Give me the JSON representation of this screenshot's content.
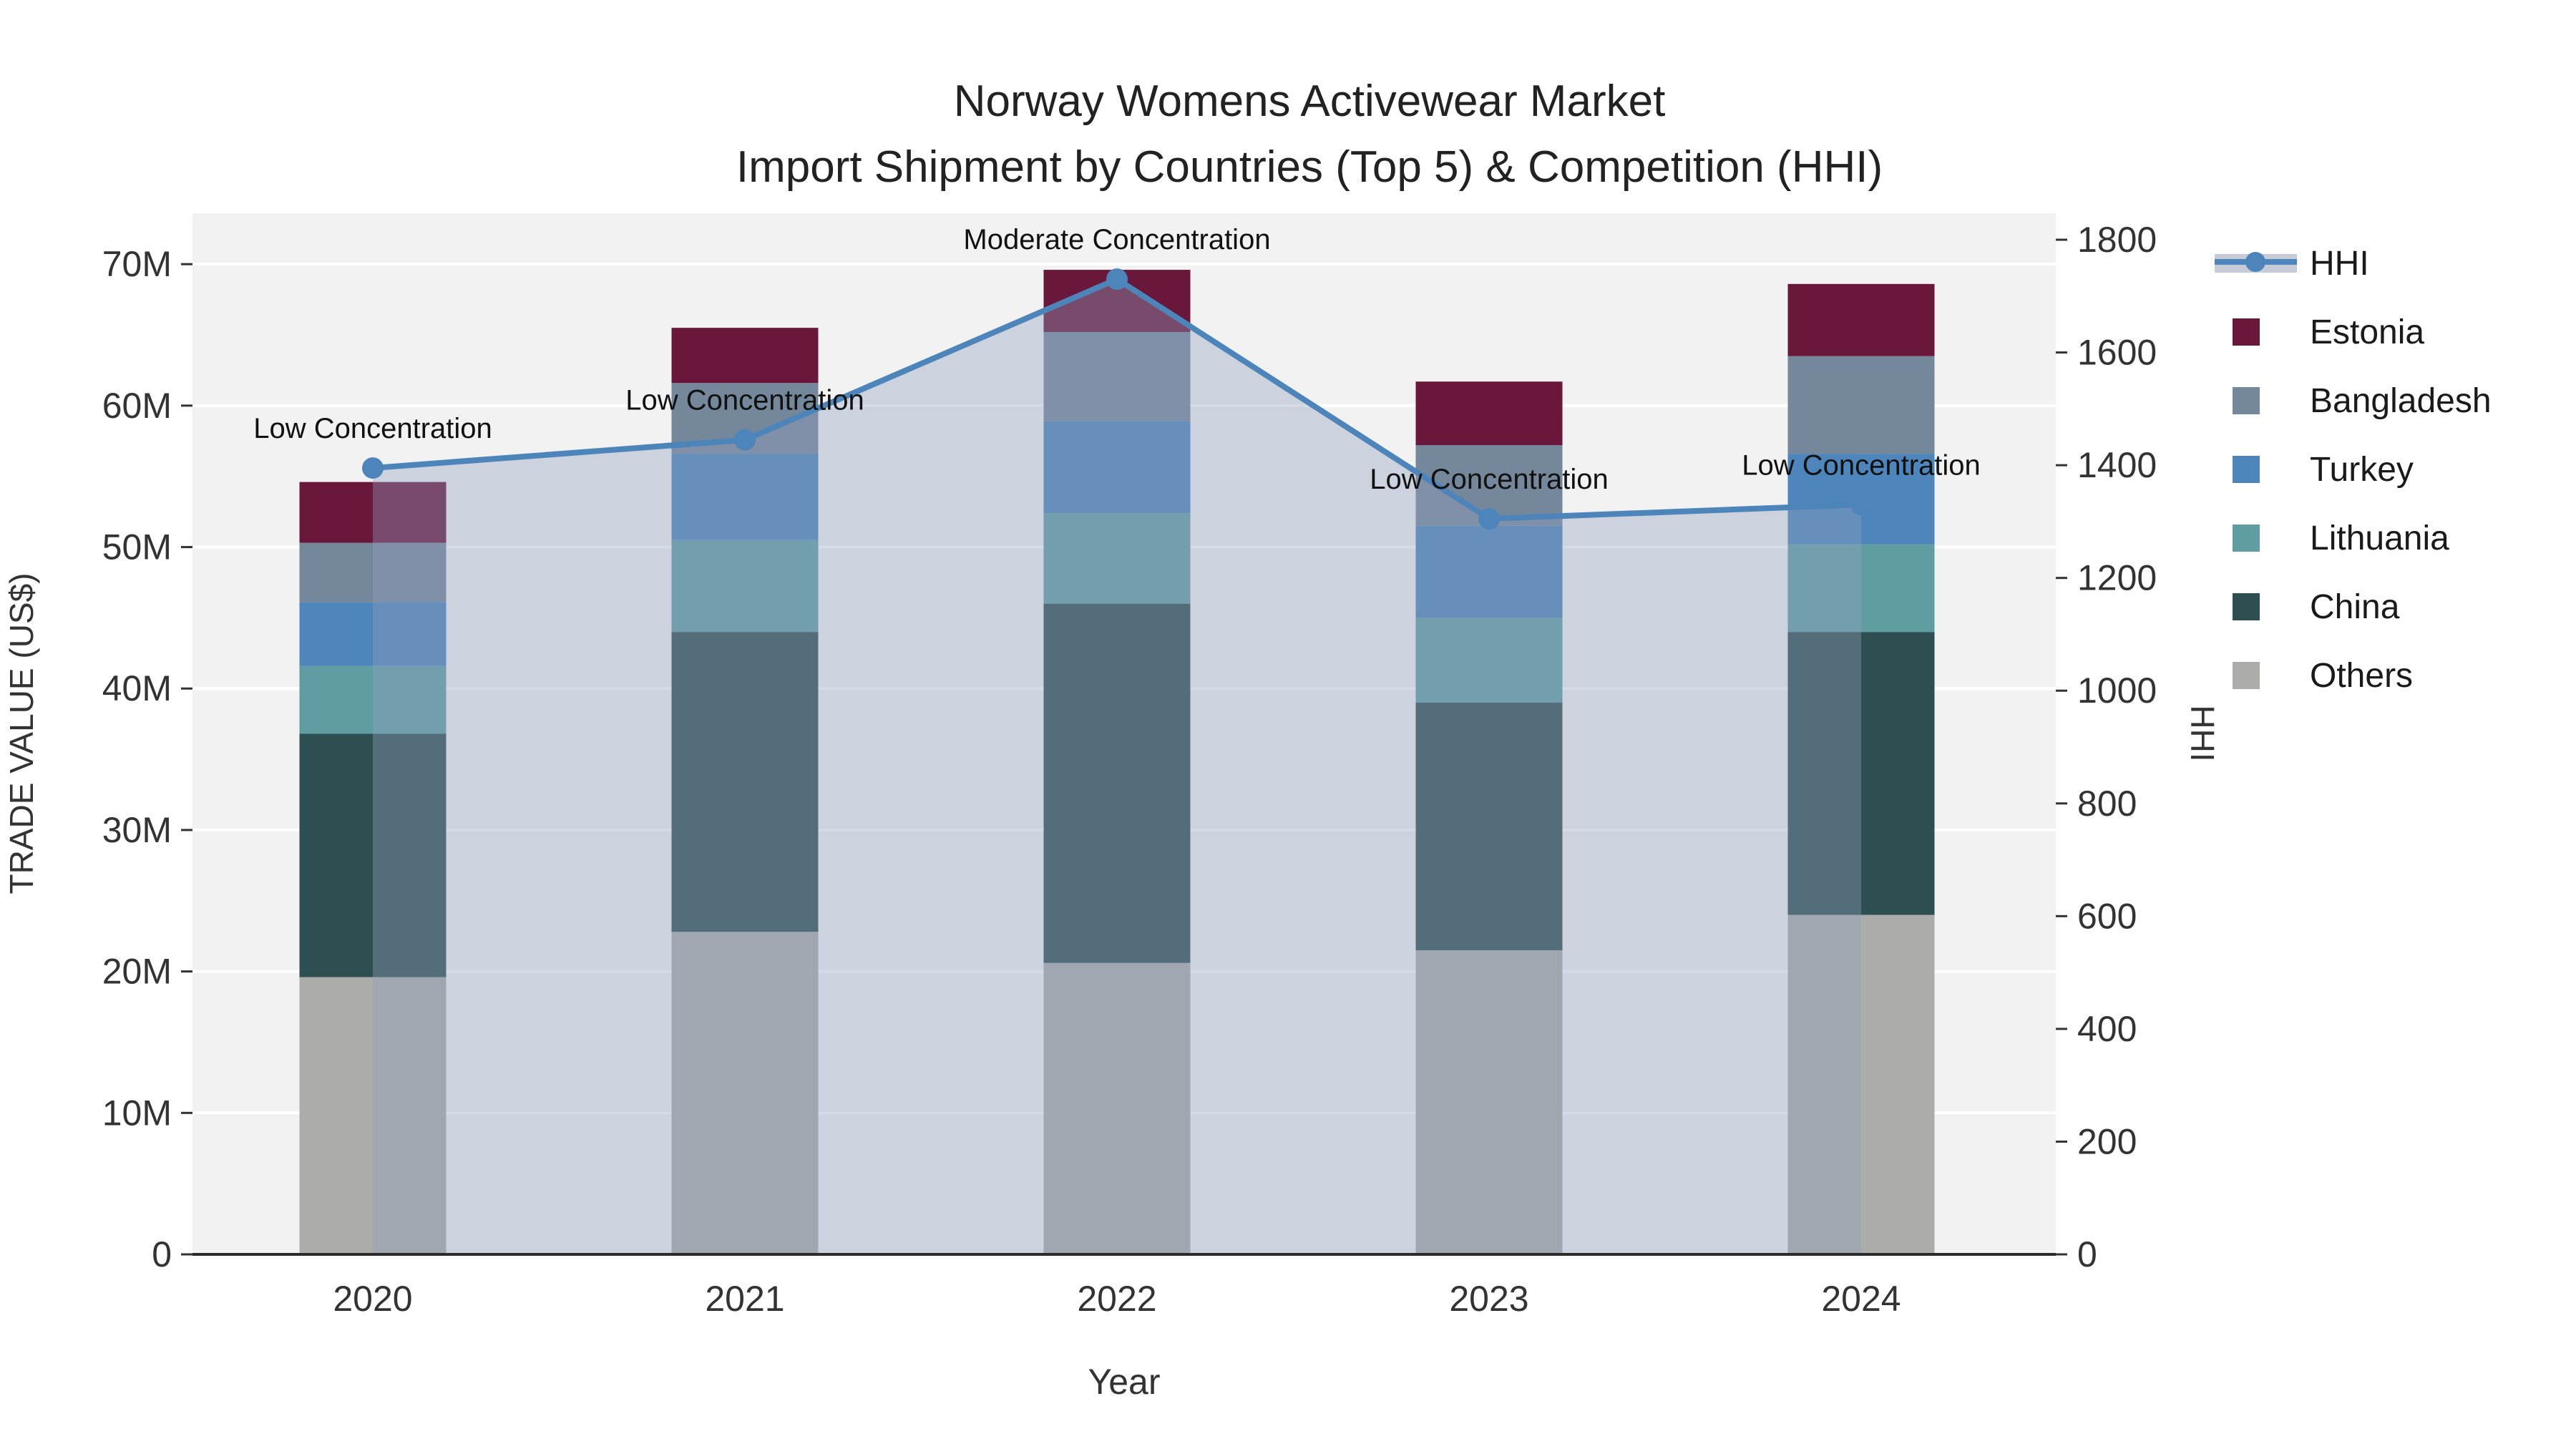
{
  "figure": {
    "title_line1": "Norway Womens Activewear Market",
    "title_line2": "Import Shipment by Countries (Top 5) & Competition (HHI)"
  },
  "chart_data": {
    "type": "bar",
    "subtype": "stacked-bars-with-hhi-line-and-area",
    "categories": [
      "2020",
      "2021",
      "2022",
      "2023",
      "2024"
    ],
    "xlabel": "Year",
    "ylabel_left": "TRADE VALUE (US$)",
    "ylabel_right": "HHI",
    "ylim_left_musd": [
      0,
      73.6
    ],
    "ylim_right_hhi": [
      0,
      1847
    ],
    "grid": "horizontal white lines every 10M",
    "legend_position": "right",
    "plot_bg_color": "#F2F2F2",
    "grid_color": "#FFFFFF",
    "series_bottom_to_top": [
      {
        "name": "Others",
        "color": "#ACACAA",
        "values_musd": [
          19.6,
          22.8,
          20.6,
          21.5,
          24.0
        ]
      },
      {
        "name": "China",
        "color": "#2E4F52",
        "values_musd": [
          17.2,
          21.2,
          25.4,
          17.5,
          20.0
        ]
      },
      {
        "name": "Lithuania",
        "color": "#5F9DA3",
        "values_musd": [
          4.8,
          6.5,
          6.4,
          6.0,
          6.2
        ]
      },
      {
        "name": "Turkey",
        "color": "#4E85BB",
        "values_musd": [
          4.5,
          6.1,
          6.5,
          6.5,
          6.4
        ]
      },
      {
        "name": "Bangladesh",
        "color": "#75879B",
        "values_musd": [
          4.2,
          5.0,
          6.3,
          5.7,
          6.9
        ]
      },
      {
        "name": "Estonia",
        "color": "#69173A",
        "values_musd": [
          4.3,
          3.9,
          4.4,
          4.5,
          5.1
        ]
      }
    ],
    "totals_musd": [
      54.6,
      65.5,
      69.6,
      61.7,
      68.6
    ],
    "hhi": {
      "name": "HHI",
      "line_color": "#4D85BB",
      "area_color": "rgba(145,160,188,0.38)",
      "legend_band_color": "#C5CCD8",
      "values": [
        1395,
        1445,
        1730,
        1305,
        1330
      ]
    },
    "annotations": [
      {
        "year": "2020",
        "label": "Low Concentration"
      },
      {
        "year": "2021",
        "label": "Low Concentration"
      },
      {
        "year": "2022",
        "label": "Moderate Concentration"
      },
      {
        "year": "2023",
        "label": "Low Concentration"
      },
      {
        "year": "2024",
        "label": "Low Concentration"
      }
    ],
    "yticks_left": [
      {
        "v": 0,
        "label": "0"
      },
      {
        "v": 10,
        "label": "10M"
      },
      {
        "v": 20,
        "label": "20M"
      },
      {
        "v": 30,
        "label": "30M"
      },
      {
        "v": 40,
        "label": "40M"
      },
      {
        "v": 50,
        "label": "50M"
      },
      {
        "v": 60,
        "label": "60M"
      },
      {
        "v": 70,
        "label": "70M"
      }
    ],
    "yticks_right": [
      {
        "v": 0,
        "label": "0"
      },
      {
        "v": 200,
        "label": "200"
      },
      {
        "v": 400,
        "label": "400"
      },
      {
        "v": 600,
        "label": "600"
      },
      {
        "v": 800,
        "label": "800"
      },
      {
        "v": 1000,
        "label": "1000"
      },
      {
        "v": 1200,
        "label": "1200"
      },
      {
        "v": 1400,
        "label": "1400"
      },
      {
        "v": 1600,
        "label": "1600"
      },
      {
        "v": 1800,
        "label": "1800"
      }
    ],
    "legend_order": [
      "HHI",
      "Estonia",
      "Bangladesh",
      "Turkey",
      "Lithuania",
      "China",
      "Others"
    ]
  }
}
